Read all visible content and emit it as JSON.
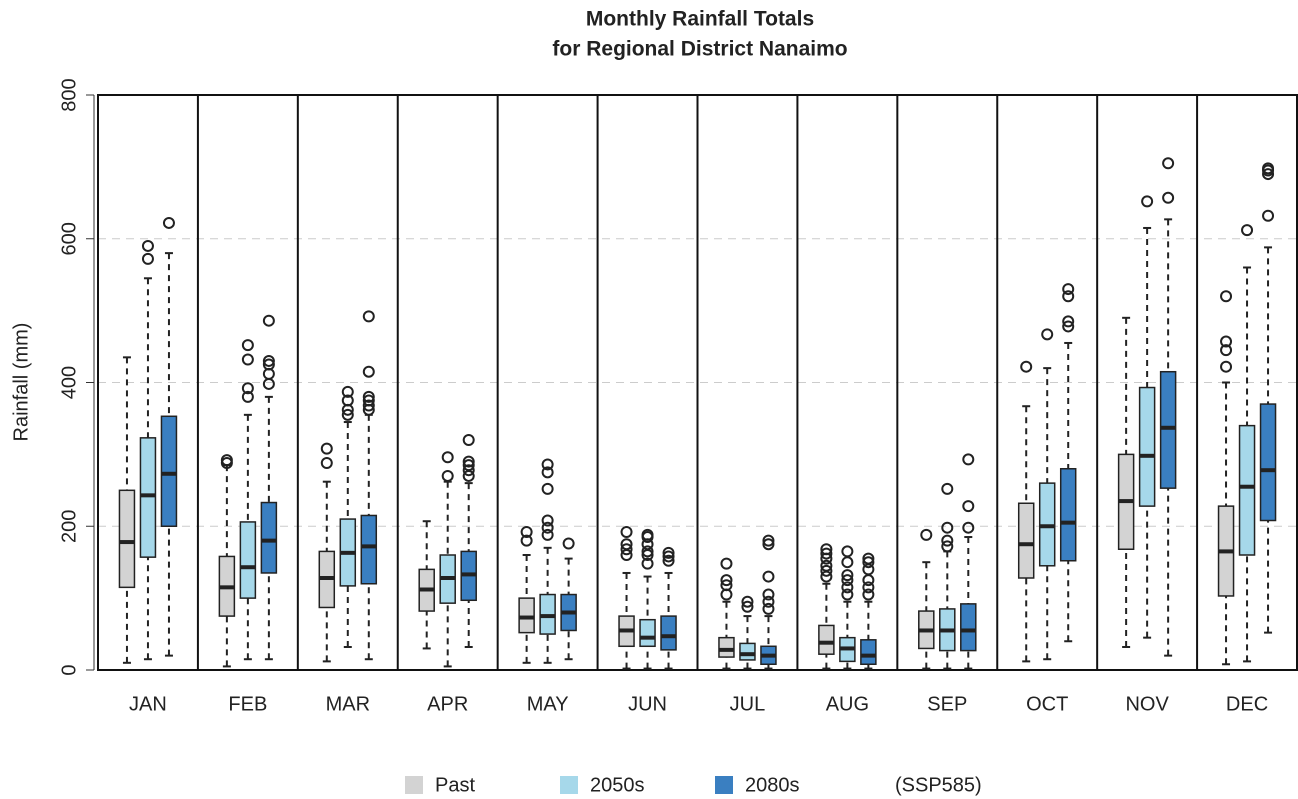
{
  "chart_data": {
    "type": "box",
    "title": [
      "Monthly Rainfall Totals",
      "for Regional District Nanaimo"
    ],
    "y_label": "Rainfall (mm)",
    "ylim": [
      0,
      800
    ],
    "yticks": [
      0,
      200,
      400,
      600,
      800
    ],
    "grid": true,
    "categories": [
      "JAN",
      "FEB",
      "MAR",
      "APR",
      "MAY",
      "JUN",
      "JUL",
      "AUG",
      "SEP",
      "OCT",
      "NOV",
      "DEC"
    ],
    "legend_note": "(SSP585)",
    "series": [
      {
        "name": "Past",
        "color": "#d3d3d3",
        "stats": [
          {
            "whislo": 10,
            "q1": 115,
            "med": 178,
            "q3": 250,
            "whishi": 435,
            "fliers": []
          },
          {
            "whislo": 5,
            "q1": 75,
            "med": 115,
            "q3": 158,
            "whishi": 285,
            "fliers": [
              288,
              292
            ]
          },
          {
            "whislo": 12,
            "q1": 87,
            "med": 128,
            "q3": 165,
            "whishi": 262,
            "fliers": [
              288,
              308
            ]
          },
          {
            "whislo": 30,
            "q1": 82,
            "med": 112,
            "q3": 140,
            "whishi": 207,
            "fliers": []
          },
          {
            "whislo": 10,
            "q1": 52,
            "med": 73,
            "q3": 100,
            "whishi": 160,
            "fliers": [
              180,
              192
            ]
          },
          {
            "whislo": 2,
            "q1": 33,
            "med": 55,
            "q3": 75,
            "whishi": 135,
            "fliers": [
              160,
              168,
              175,
              192
            ]
          },
          {
            "whislo": 2,
            "q1": 18,
            "med": 28,
            "q3": 45,
            "whishi": 95,
            "fliers": [
              105,
              118,
              125,
              148
            ]
          },
          {
            "whislo": 2,
            "q1": 22,
            "med": 38,
            "q3": 62,
            "whishi": 120,
            "fliers": [
              130,
              138,
              145,
              155,
              162,
              168
            ]
          },
          {
            "whislo": 2,
            "q1": 30,
            "med": 55,
            "q3": 82,
            "whishi": 150,
            "fliers": [
              188
            ]
          },
          {
            "whislo": 12,
            "q1": 128,
            "med": 175,
            "q3": 232,
            "whishi": 367,
            "fliers": [
              422
            ]
          },
          {
            "whislo": 32,
            "q1": 168,
            "med": 235,
            "q3": 300,
            "whishi": 490,
            "fliers": []
          },
          {
            "whislo": 8,
            "q1": 103,
            "med": 165,
            "q3": 228,
            "whishi": 400,
            "fliers": [
              422,
              445,
              457,
              520
            ]
          }
        ]
      },
      {
        "name": "2050s",
        "color": "#a6d8ea",
        "stats": [
          {
            "whislo": 15,
            "q1": 157,
            "med": 243,
            "q3": 323,
            "whishi": 545,
            "fliers": [
              572,
              590
            ]
          },
          {
            "whislo": 15,
            "q1": 100,
            "med": 143,
            "q3": 206,
            "whishi": 355,
            "fliers": [
              380,
              392,
              432,
              452
            ]
          },
          {
            "whislo": 32,
            "q1": 117,
            "med": 163,
            "q3": 210,
            "whishi": 345,
            "fliers": [
              355,
              362,
              375,
              387
            ]
          },
          {
            "whislo": 5,
            "q1": 93,
            "med": 128,
            "q3": 160,
            "whishi": 262,
            "fliers": [
              270,
              296
            ]
          },
          {
            "whislo": 10,
            "q1": 50,
            "med": 75,
            "q3": 105,
            "whishi": 170,
            "fliers": [
              188,
              198,
              208,
              252,
              275,
              286
            ]
          },
          {
            "whislo": 2,
            "q1": 33,
            "med": 45,
            "q3": 70,
            "whishi": 130,
            "fliers": [
              148,
              160,
              165,
              175,
              185,
              188
            ]
          },
          {
            "whislo": 2,
            "q1": 14,
            "med": 22,
            "q3": 37,
            "whishi": 75,
            "fliers": [
              88,
              95
            ]
          },
          {
            "whislo": 2,
            "q1": 12,
            "med": 30,
            "q3": 45,
            "whishi": 95,
            "fliers": [
              105,
              115,
              125,
              132,
              150,
              165
            ]
          },
          {
            "whislo": 2,
            "q1": 27,
            "med": 55,
            "q3": 85,
            "whishi": 165,
            "fliers": [
              172,
              180,
              198,
              252
            ]
          },
          {
            "whislo": 15,
            "q1": 145,
            "med": 200,
            "q3": 260,
            "whishi": 420,
            "fliers": [
              467
            ]
          },
          {
            "whislo": 45,
            "q1": 228,
            "med": 298,
            "q3": 393,
            "whishi": 615,
            "fliers": [
              652
            ]
          },
          {
            "whislo": 12,
            "q1": 160,
            "med": 255,
            "q3": 340,
            "whishi": 560,
            "fliers": [
              612
            ]
          }
        ]
      },
      {
        "name": "2080s",
        "color": "#3a7fc1",
        "stats": [
          {
            "whislo": 20,
            "q1": 200,
            "med": 273,
            "q3": 353,
            "whishi": 580,
            "fliers": [
              622
            ]
          },
          {
            "whislo": 15,
            "q1": 135,
            "med": 180,
            "q3": 233,
            "whishi": 380,
            "fliers": [
              398,
              412,
              425,
              430,
              486
            ]
          },
          {
            "whislo": 15,
            "q1": 120,
            "med": 172,
            "q3": 215,
            "whishi": 355,
            "fliers": [
              362,
              368,
              375,
              380,
              415,
              492
            ]
          },
          {
            "whislo": 32,
            "q1": 97,
            "med": 133,
            "q3": 165,
            "whishi": 260,
            "fliers": [
              270,
              278,
              285,
              290,
              320
            ]
          },
          {
            "whislo": 15,
            "q1": 55,
            "med": 80,
            "q3": 105,
            "whishi": 155,
            "fliers": [
              176
            ]
          },
          {
            "whislo": 2,
            "q1": 28,
            "med": 47,
            "q3": 75,
            "whishi": 135,
            "fliers": [
              152,
              158,
              163
            ]
          },
          {
            "whislo": 2,
            "q1": 8,
            "med": 20,
            "q3": 33,
            "whishi": 75,
            "fliers": [
              85,
              95,
              105,
              130,
              175,
              180
            ]
          },
          {
            "whislo": 2,
            "q1": 8,
            "med": 20,
            "q3": 42,
            "whishi": 95,
            "fliers": [
              105,
              115,
              125,
              140,
              150,
              155
            ]
          },
          {
            "whislo": 2,
            "q1": 27,
            "med": 55,
            "q3": 92,
            "whishi": 185,
            "fliers": [
              198,
              228,
              293
            ]
          },
          {
            "whislo": 40,
            "q1": 152,
            "med": 205,
            "q3": 280,
            "whishi": 455,
            "fliers": [
              478,
              485,
              520,
              530
            ]
          },
          {
            "whislo": 20,
            "q1": 253,
            "med": 337,
            "q3": 415,
            "whishi": 627,
            "fliers": [
              657,
              705
            ]
          },
          {
            "whislo": 52,
            "q1": 208,
            "med": 278,
            "q3": 370,
            "whishi": 588,
            "fliers": [
              632,
              690,
              695,
              698
            ]
          }
        ]
      }
    ]
  }
}
